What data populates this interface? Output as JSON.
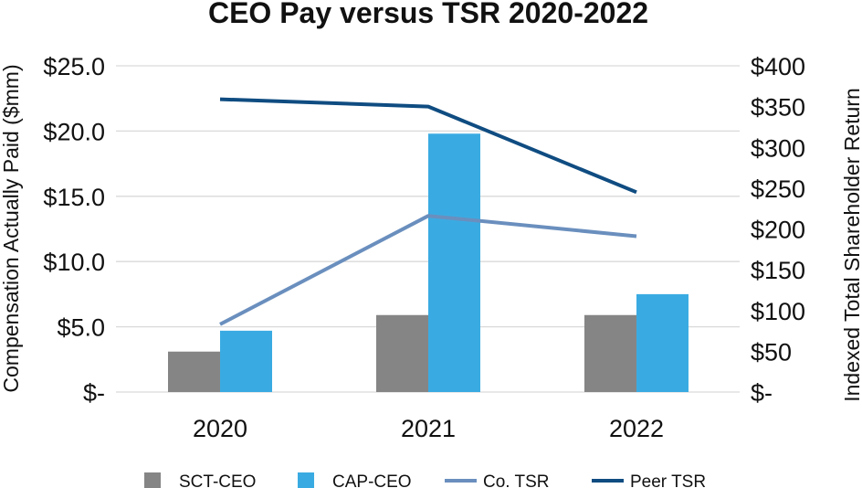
{
  "chart_data": {
    "type": "bar",
    "title": "CEO Pay versus TSR 2020-2022",
    "categories": [
      "2020",
      "2021",
      "2022"
    ],
    "ylabel": "Compensation Actually Paid ($mm)",
    "y2label": "Indexed Total Shareholder Return",
    "ylim": [
      0,
      25
    ],
    "y2lim": [
      0,
      400
    ],
    "yticks": [
      "$-",
      "$5.0",
      "$10.0",
      "$15.0",
      "$20.0",
      "$25.0"
    ],
    "y2ticks": [
      "$-",
      "$50",
      "$100",
      "$150",
      "$200",
      "$250",
      "$300",
      "$350",
      "$400"
    ],
    "grid": true,
    "legend_position": "bottom",
    "bar_series": [
      {
        "name": "SCT-CEO",
        "values": [
          3.1,
          5.9,
          5.9
        ],
        "color": "#858585"
      },
      {
        "name": "CAP-CEO",
        "values": [
          4.7,
          19.8,
          7.5
        ],
        "color": "#3aabe2"
      }
    ],
    "line_series": [
      {
        "name": "Co. TSR",
        "axis": "right",
        "values": [
          83,
          216,
          191
        ],
        "color": "#6a8fbe"
      },
      {
        "name": "Peer TSR",
        "axis": "right",
        "values": [
          359,
          350,
          245
        ],
        "color": "#0f4c81"
      }
    ]
  }
}
